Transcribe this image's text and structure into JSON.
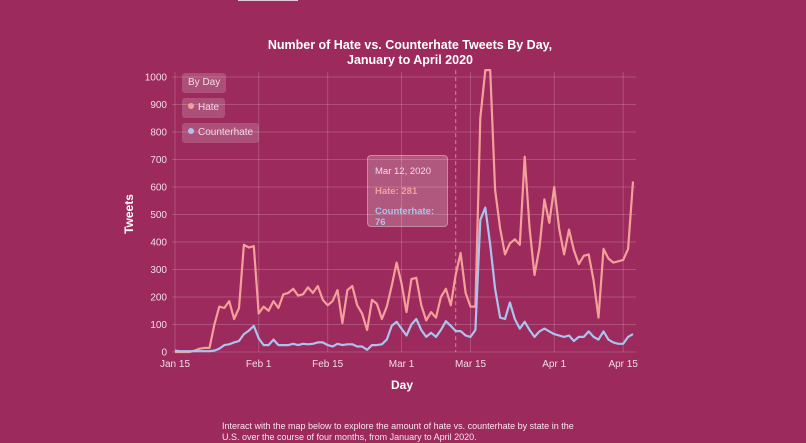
{
  "chart_data": {
    "type": "line",
    "title": "Number of Hate vs. Counterhate Tweets By Day,\nJanuary to April 2020",
    "title_lines": [
      "Number of Hate vs. Counterhate Tweets By Day,",
      "January to April 2020"
    ],
    "xlabel": "Day",
    "ylabel": "Tweets",
    "ylim": [
      0,
      1000
    ],
    "yticks": [
      0,
      100,
      200,
      300,
      400,
      500,
      600,
      700,
      800,
      900,
      1000
    ],
    "xtick_labels": [
      "Jan 15",
      "Feb 1",
      "Feb 15",
      "Mar 1",
      "Mar 15",
      "Apr 1",
      "Apr 15"
    ],
    "xtick_dates": [
      "2020-01-15",
      "2020-02-01",
      "2020-02-15",
      "2020-03-01",
      "2020-03-15",
      "2020-04-01",
      "2020-04-15"
    ],
    "grid": true,
    "legend_placement": "top-left",
    "legend_title": "By Day",
    "x": [
      "2020-01-15",
      "2020-01-16",
      "2020-01-17",
      "2020-01-18",
      "2020-01-19",
      "2020-01-20",
      "2020-01-21",
      "2020-01-22",
      "2020-01-23",
      "2020-01-24",
      "2020-01-25",
      "2020-01-26",
      "2020-01-27",
      "2020-01-28",
      "2020-01-29",
      "2020-01-30",
      "2020-01-31",
      "2020-02-01",
      "2020-02-02",
      "2020-02-03",
      "2020-02-04",
      "2020-02-05",
      "2020-02-06",
      "2020-02-07",
      "2020-02-08",
      "2020-02-09",
      "2020-02-10",
      "2020-02-11",
      "2020-02-12",
      "2020-02-13",
      "2020-02-14",
      "2020-02-15",
      "2020-02-16",
      "2020-02-17",
      "2020-02-18",
      "2020-02-19",
      "2020-02-20",
      "2020-02-21",
      "2020-02-22",
      "2020-02-23",
      "2020-02-24",
      "2020-02-25",
      "2020-02-26",
      "2020-02-27",
      "2020-02-28",
      "2020-02-29",
      "2020-03-01",
      "2020-03-02",
      "2020-03-03",
      "2020-03-04",
      "2020-03-05",
      "2020-03-06",
      "2020-03-07",
      "2020-03-08",
      "2020-03-09",
      "2020-03-10",
      "2020-03-11",
      "2020-03-12",
      "2020-03-13",
      "2020-03-14",
      "2020-03-15",
      "2020-03-16",
      "2020-03-17",
      "2020-03-18",
      "2020-03-19",
      "2020-03-20",
      "2020-03-21",
      "2020-03-22",
      "2020-03-23",
      "2020-03-24",
      "2020-03-25",
      "2020-03-26",
      "2020-03-27",
      "2020-03-28",
      "2020-03-29",
      "2020-03-30",
      "2020-03-31",
      "2020-04-01",
      "2020-04-02",
      "2020-04-03",
      "2020-04-04",
      "2020-04-05",
      "2020-04-06",
      "2020-04-07",
      "2020-04-08",
      "2020-04-09",
      "2020-04-10",
      "2020-04-11",
      "2020-04-12",
      "2020-04-13",
      "2020-04-14",
      "2020-04-15",
      "2020-04-16",
      "2020-04-17"
    ],
    "series": [
      {
        "name": "Hate",
        "color": "#f4a09a",
        "values": [
          0,
          0,
          0,
          0,
          5,
          12,
          15,
          15,
          100,
          165,
          160,
          185,
          120,
          160,
          390,
          380,
          385,
          140,
          165,
          150,
          185,
          160,
          210,
          215,
          230,
          205,
          210,
          235,
          215,
          240,
          190,
          170,
          185,
          225,
          105,
          225,
          240,
          170,
          140,
          80,
          190,
          175,
          120,
          165,
          240,
          325,
          250,
          145,
          265,
          270,
          170,
          115,
          145,
          125,
          200,
          230,
          170,
          281,
          360,
          215,
          165,
          165,
          850,
          1025,
          1025,
          590,
          450,
          355,
          395,
          410,
          390,
          710,
          450,
          280,
          380,
          555,
          470,
          600,
          450,
          355,
          445,
          370,
          320,
          350,
          355,
          260,
          125,
          375,
          340,
          325,
          330,
          335,
          375,
          620
        ]
      },
      {
        "name": "Counterhate",
        "color": "#a9c4ee",
        "values": [
          5,
          3,
          3,
          3,
          3,
          3,
          3,
          3,
          5,
          12,
          25,
          28,
          35,
          40,
          65,
          78,
          95,
          50,
          25,
          25,
          45,
          25,
          25,
          25,
          30,
          25,
          30,
          28,
          30,
          35,
          35,
          25,
          20,
          30,
          25,
          28,
          28,
          20,
          20,
          8,
          25,
          25,
          28,
          45,
          95,
          110,
          85,
          60,
          100,
          120,
          80,
          55,
          70,
          55,
          80,
          112,
          95,
          76,
          76,
          60,
          55,
          80,
          480,
          525,
          390,
          230,
          125,
          120,
          180,
          120,
          85,
          110,
          80,
          55,
          75,
          85,
          75,
          65,
          60,
          55,
          60,
          40,
          55,
          55,
          75,
          55,
          45,
          75,
          45,
          35,
          30,
          30,
          55,
          65
        ]
      }
    ],
    "tooltip": {
      "date": "Mar 12, 2020",
      "date_value": "2020-03-12",
      "hate_label": "Hate: 281",
      "counterhate_label": "Counterhate: 76"
    }
  },
  "caption": [
    "Interact with the map below to explore the amount of hate vs. counterhate by state in the",
    "U.S. over the course of four months, from January to April 2020."
  ],
  "colors": {
    "background": "#9c2a5c",
    "hate": "#f4a09a",
    "counterhate": "#a9c4ee"
  }
}
